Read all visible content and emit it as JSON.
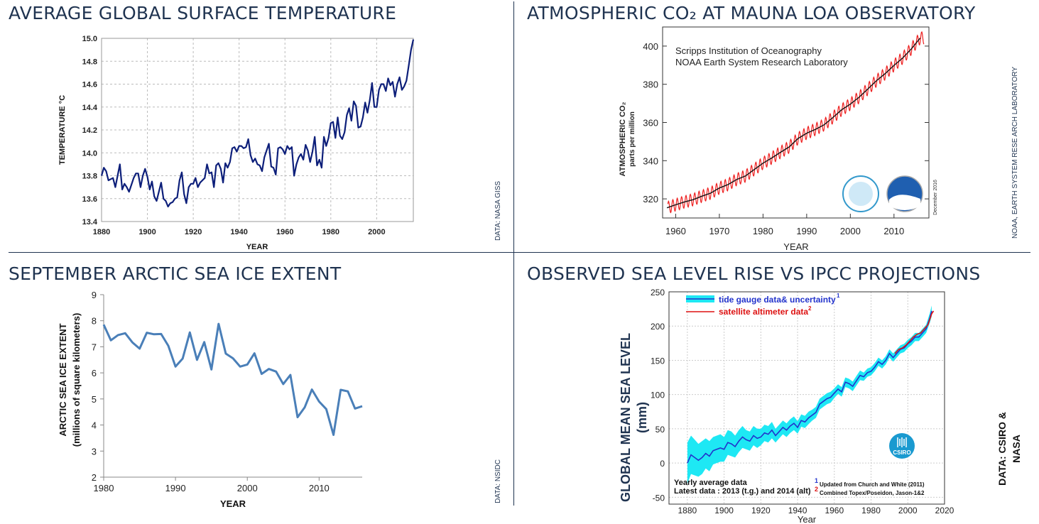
{
  "panels": {
    "temp": {
      "title": "AVERAGE GLOBAL SURFACE TEMPERATURE",
      "source": "DATA: NASA GISS"
    },
    "co2": {
      "title": "ATMOSPHERIC CO₂ AT MAUNA LOA OBSERVATORY",
      "source": "NOAA, EARTH SYSTEM RESE ARCH LABORATORY",
      "inset_line1": "Scripps Institution of Oceanography",
      "inset_line2": "NOAA Earth System Research Laboratory",
      "date_note": "December 2016"
    },
    "ice": {
      "title": "SEPTEMBER ARCTIC SEA ICE EXTENT",
      "source": "DATA: NSIDC"
    },
    "sea": {
      "title": "OBSERVED SEA LEVEL RISE VS IPCC PROJECTIONS",
      "source_line1": "DATA: CSIRO &",
      "source_line2": "NASA",
      "legend_tide": "tide gauge data& uncertainty",
      "legend_tide_sup": "1",
      "legend_sat": "satellite altimeter data",
      "legend_sat_sup": "2",
      "note1": "Yearly average data",
      "note2": "Latest data : 2013 (t.g.) and 2014 (alt)",
      "foot1_num": "1",
      "foot1": "Updated from Church and White (2011)",
      "foot2_num": "2",
      "foot2": "Combined Topex/Poseidon, Jason-1&2",
      "logo_text": "CSIRO"
    }
  },
  "colors": {
    "title": "#1f3350",
    "temp_line": "#0d1f7a",
    "co2_monthly": "#ee2020",
    "co2_trend": "#111111",
    "ice_line": "#4a7fb8",
    "sea_band": "#1ee8f4",
    "sea_tide": "#2233cc",
    "sea_sat": "#dd1111",
    "csiro": "#1a9ad0"
  },
  "chart_data": [
    {
      "type": "line",
      "xlabel": "YEAR",
      "ylabel": "TEMPERATURE °C",
      "xlim": [
        1880,
        2016
      ],
      "ylim": [
        13.4,
        15.0
      ],
      "xticks": [
        1880,
        1900,
        1920,
        1940,
        1960,
        1980,
        2000
      ],
      "yticks": [
        "13.4",
        "13.6",
        "13.8",
        "14.0",
        "14.2",
        "14.4",
        "14.6",
        "14.8",
        "15.0"
      ],
      "grid": true,
      "x": [
        1880,
        1881,
        1882,
        1883,
        1884,
        1885,
        1886,
        1887,
        1888,
        1889,
        1890,
        1891,
        1892,
        1893,
        1894,
        1895,
        1896,
        1897,
        1898,
        1899,
        1900,
        1901,
        1902,
        1903,
        1904,
        1905,
        1906,
        1907,
        1908,
        1909,
        1910,
        1911,
        1912,
        1913,
        1914,
        1915,
        1916,
        1917,
        1918,
        1919,
        1920,
        1921,
        1922,
        1923,
        1924,
        1925,
        1926,
        1927,
        1928,
        1929,
        1930,
        1931,
        1932,
        1933,
        1934,
        1935,
        1936,
        1937,
        1938,
        1939,
        1940,
        1941,
        1942,
        1943,
        1944,
        1945,
        1946,
        1947,
        1948,
        1949,
        1950,
        1951,
        1952,
        1953,
        1954,
        1955,
        1956,
        1957,
        1958,
        1959,
        1960,
        1961,
        1962,
        1963,
        1964,
        1965,
        1966,
        1967,
        1968,
        1969,
        1970,
        1971,
        1972,
        1973,
        1974,
        1975,
        1976,
        1977,
        1978,
        1979,
        1980,
        1981,
        1982,
        1983,
        1984,
        1985,
        1986,
        1987,
        1988,
        1989,
        1990,
        1991,
        1992,
        1993,
        1994,
        1995,
        1996,
        1997,
        1998,
        1999,
        2000,
        2001,
        2002,
        2003,
        2004,
        2005,
        2006,
        2007,
        2008,
        2009,
        2010,
        2011,
        2012,
        2013,
        2014,
        2015,
        2016
      ],
      "values": [
        13.8,
        13.87,
        13.84,
        13.76,
        13.77,
        13.78,
        13.7,
        13.8,
        13.9,
        13.68,
        13.73,
        13.7,
        13.66,
        13.72,
        13.78,
        13.82,
        13.82,
        13.7,
        13.8,
        13.86,
        13.79,
        13.68,
        13.75,
        13.62,
        13.58,
        13.66,
        13.74,
        13.6,
        13.58,
        13.53,
        13.56,
        13.57,
        13.6,
        13.61,
        13.76,
        13.83,
        13.64,
        13.56,
        13.7,
        13.73,
        13.73,
        13.78,
        13.7,
        13.74,
        13.76,
        13.78,
        13.9,
        13.82,
        13.83,
        13.7,
        13.89,
        13.91,
        13.86,
        13.74,
        13.91,
        13.87,
        13.92,
        14.04,
        14.05,
        14.01,
        14.06,
        14.06,
        14.04,
        14.05,
        14.12,
        13.98,
        13.92,
        13.95,
        13.9,
        13.89,
        13.84,
        13.96,
        14.02,
        14.08,
        13.88,
        13.87,
        13.81,
        14.04,
        14.05,
        14.03,
        13.99,
        14.06,
        14.03,
        14.05,
        13.8,
        13.9,
        13.96,
        13.99,
        13.94,
        14.07,
        14.02,
        13.92,
        14.01,
        14.14,
        13.89,
        13.94,
        13.87,
        14.14,
        14.06,
        14.13,
        14.26,
        14.27,
        14.13,
        14.31,
        14.15,
        14.12,
        14.18,
        14.33,
        14.39,
        14.28,
        14.45,
        14.41,
        14.22,
        14.23,
        14.31,
        14.44,
        14.35,
        14.46,
        14.61,
        14.4,
        14.4,
        14.55,
        14.6,
        14.6,
        14.54,
        14.65,
        14.59,
        14.62,
        14.49,
        14.6,
        14.66,
        14.55,
        14.58,
        14.63,
        14.76,
        14.9,
        14.99
      ]
    },
    {
      "type": "line",
      "xlabel": "YEAR",
      "ylabel": "ATMOSPHERIC CO₂ parts per million",
      "xlim": [
        1957,
        2018
      ],
      "ylim": [
        310,
        410
      ],
      "xticks": [
        1960,
        1970,
        1980,
        1990,
        2000,
        2010
      ],
      "yticks": [
        320,
        340,
        360,
        380,
        400
      ],
      "grid": false,
      "series": [
        {
          "name": "monthly",
          "seasonal_amplitude": 3.2
        },
        {
          "name": "trend"
        }
      ],
      "x": [
        1958,
        1960,
        1962,
        1964,
        1966,
        1968,
        1970,
        1972,
        1974,
        1976,
        1978,
        1980,
        1982,
        1984,
        1986,
        1988,
        1990,
        1992,
        1994,
        1996,
        1998,
        2000,
        2002,
        2004,
        2006,
        2008,
        2010,
        2012,
        2014,
        2016
      ],
      "values": [
        315.3,
        316.9,
        318.4,
        319.6,
        321.4,
        323.0,
        325.7,
        327.5,
        330.2,
        332.0,
        335.4,
        338.7,
        341.4,
        344.4,
        347.2,
        351.6,
        354.4,
        356.4,
        358.8,
        362.6,
        366.6,
        369.6,
        373.2,
        377.5,
        381.9,
        385.6,
        389.9,
        393.8,
        398.6,
        404.2
      ]
    },
    {
      "type": "line",
      "xlabel": "YEAR",
      "ylabel": "ARCTIC SEA ICE EXTENT (millions of square kilometers)",
      "xlim": [
        1980,
        2016
      ],
      "ylim": [
        2,
        9
      ],
      "xticks": [
        1980,
        1990,
        2000,
        2010
      ],
      "yticks": [
        2,
        3,
        4,
        5,
        6,
        7,
        8,
        9
      ],
      "grid": false,
      "x": [
        1979,
        1980,
        1981,
        1982,
        1983,
        1984,
        1985,
        1986,
        1987,
        1988,
        1989,
        1990,
        1991,
        1992,
        1993,
        1994,
        1995,
        1996,
        1997,
        1998,
        1999,
        2000,
        2001,
        2002,
        2003,
        2004,
        2005,
        2006,
        2007,
        2008,
        2009,
        2010,
        2011,
        2012,
        2013,
        2014,
        2015,
        2016
      ],
      "values": [
        7.2,
        7.85,
        7.25,
        7.45,
        7.52,
        7.17,
        6.93,
        7.54,
        7.48,
        7.49,
        7.04,
        6.24,
        6.55,
        7.55,
        6.5,
        7.18,
        6.13,
        7.88,
        6.74,
        6.56,
        6.24,
        6.32,
        6.75,
        5.96,
        6.15,
        6.05,
        5.57,
        5.92,
        4.3,
        4.68,
        5.36,
        4.9,
        4.61,
        3.62,
        5.35,
        5.29,
        4.63,
        4.72
      ]
    },
    {
      "type": "line",
      "xlabel": "Year",
      "ylabel": "GLOBAL MEAN SEA LEVEL (mm)",
      "xlim": [
        1870,
        2020
      ],
      "ylim": [
        -60,
        250
      ],
      "xticks": [
        1880,
        1900,
        1920,
        1940,
        1960,
        1980,
        2000,
        2020
      ],
      "yticks": [
        -50,
        0,
        50,
        100,
        150,
        200,
        250
      ],
      "grid": true,
      "series": [
        {
          "name": "tide gauge data& uncertainty",
          "x": [
            1880,
            1882,
            1884,
            1886,
            1888,
            1890,
            1892,
            1894,
            1896,
            1898,
            1900,
            1902,
            1904,
            1906,
            1908,
            1910,
            1912,
            1914,
            1916,
            1918,
            1920,
            1922,
            1924,
            1926,
            1928,
            1930,
            1932,
            1934,
            1936,
            1938,
            1940,
            1942,
            1944,
            1946,
            1948,
            1950,
            1952,
            1954,
            1956,
            1958,
            1960,
            1962,
            1964,
            1966,
            1968,
            1970,
            1972,
            1974,
            1976,
            1978,
            1980,
            1982,
            1984,
            1986,
            1988,
            1990,
            1992,
            1994,
            1996,
            1998,
            2000,
            2002,
            2004,
            2006,
            2008,
            2010,
            2012,
            2013
          ],
          "values": [
            0,
            12,
            8,
            4,
            8,
            14,
            10,
            18,
            20,
            22,
            20,
            30,
            28,
            24,
            32,
            38,
            34,
            32,
            40,
            36,
            38,
            44,
            42,
            48,
            40,
            46,
            52,
            48,
            54,
            58,
            52,
            62,
            60,
            66,
            70,
            74,
            86,
            90,
            94,
            96,
            102,
            108,
            104,
            118,
            116,
            112,
            120,
            128,
            126,
            132,
            134,
            140,
            148,
            144,
            150,
            160,
            154,
            160,
            166,
            168,
            174,
            178,
            184,
            184,
            190,
            196,
            212,
            222
          ],
          "uncertainty": [
            30,
            28,
            26,
            24,
            24,
            22,
            22,
            20,
            20,
            20,
            18,
            18,
            18,
            16,
            16,
            16,
            14,
            14,
            14,
            14,
            12,
            12,
            12,
            12,
            10,
            10,
            10,
            10,
            10,
            10,
            9,
            9,
            9,
            9,
            8,
            8,
            8,
            8,
            8,
            8,
            7,
            7,
            7,
            7,
            7,
            7,
            7,
            7,
            6,
            6,
            6,
            6,
            6,
            6,
            6,
            6,
            6,
            6,
            6,
            6,
            6,
            6,
            6,
            6,
            6,
            6,
            7,
            8
          ]
        },
        {
          "name": "satellite altimeter data",
          "x": [
            1993,
            1995,
            1997,
            1999,
            2001,
            2003,
            2005,
            2007,
            2009,
            2011,
            2013,
            2014
          ],
          "values": [
            160,
            166,
            168,
            172,
            178,
            184,
            188,
            190,
            196,
            202,
            218,
            222
          ]
        }
      ]
    }
  ]
}
